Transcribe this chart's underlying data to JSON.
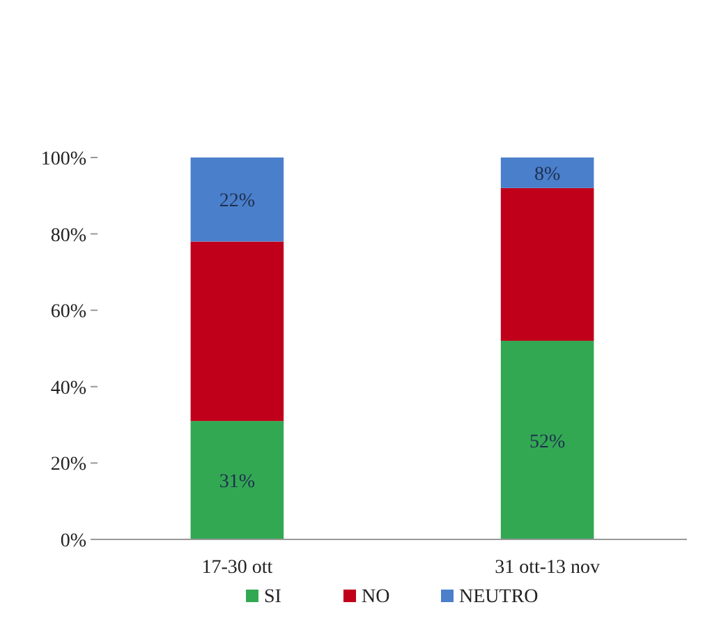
{
  "chart_data": {
    "type": "bar",
    "stacked": true,
    "categories": [
      "17-30 ott",
      "31 ott-13 nov"
    ],
    "series": [
      {
        "name": "SI",
        "color": "#33a853",
        "values": [
          31,
          52
        ],
        "value_labels": [
          "31%",
          "52%"
        ]
      },
      {
        "name": "NO",
        "color": "#c0001a",
        "values": [
          47,
          40
        ],
        "value_labels": [
          null,
          null
        ]
      },
      {
        "name": "NEUTRO",
        "color": "#4a7fcb",
        "values": [
          22,
          8
        ],
        "value_labels": [
          "22%",
          "8%"
        ]
      }
    ],
    "ylim": [
      0,
      100
    ],
    "yticks": [
      {
        "value": 0,
        "label": "0%"
      },
      {
        "value": 20,
        "label": "20%"
      },
      {
        "value": 40,
        "label": "40%"
      },
      {
        "value": 60,
        "label": "60%"
      },
      {
        "value": 80,
        "label": "80%"
      },
      {
        "value": 100,
        "label": "100%"
      }
    ],
    "grid": false,
    "legend": "bottom"
  }
}
